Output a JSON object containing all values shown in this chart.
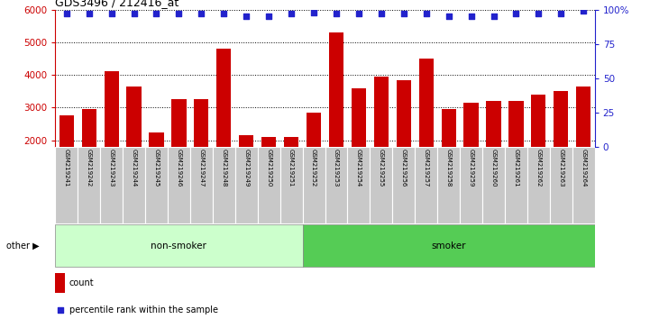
{
  "title": "GDS3496 / 212416_at",
  "samples": [
    "GSM219241",
    "GSM219242",
    "GSM219243",
    "GSM219244",
    "GSM219245",
    "GSM219246",
    "GSM219247",
    "GSM219248",
    "GSM219249",
    "GSM219250",
    "GSM219251",
    "GSM219252",
    "GSM219253",
    "GSM219254",
    "GSM219255",
    "GSM219256",
    "GSM219257",
    "GSM219258",
    "GSM219259",
    "GSM219260",
    "GSM219261",
    "GSM219262",
    "GSM219263",
    "GSM219264"
  ],
  "counts": [
    2750,
    2950,
    4100,
    3650,
    2250,
    3250,
    3250,
    4800,
    2150,
    2100,
    2100,
    2850,
    5300,
    3600,
    3950,
    3850,
    4500,
    2950,
    3150,
    3200,
    3200,
    3400,
    3500,
    3650
  ],
  "percentile_values": [
    97,
    97,
    97,
    97,
    97,
    97,
    97,
    97,
    95,
    95,
    97,
    98,
    97,
    97,
    97,
    97,
    97,
    95,
    95,
    95,
    97,
    97,
    97,
    99
  ],
  "groups": {
    "non-smoker": [
      0,
      10
    ],
    "smoker": [
      11,
      23
    ]
  },
  "ylim_left": [
    1800,
    6000
  ],
  "ylim_right": [
    0,
    100
  ],
  "yticks_left": [
    2000,
    3000,
    4000,
    5000,
    6000
  ],
  "yticks_right": [
    0,
    25,
    50,
    75,
    100
  ],
  "bar_color": "#cc0000",
  "dot_color": "#2222cc",
  "nonsmoker_bg": "#ccffcc",
  "smoker_bg": "#55cc55",
  "sample_bg": "#c8c8c8",
  "left_axis_color": "#cc0000",
  "right_axis_color": "#2222cc",
  "legend_count_color": "#cc0000",
  "legend_dot_color": "#2222cc"
}
